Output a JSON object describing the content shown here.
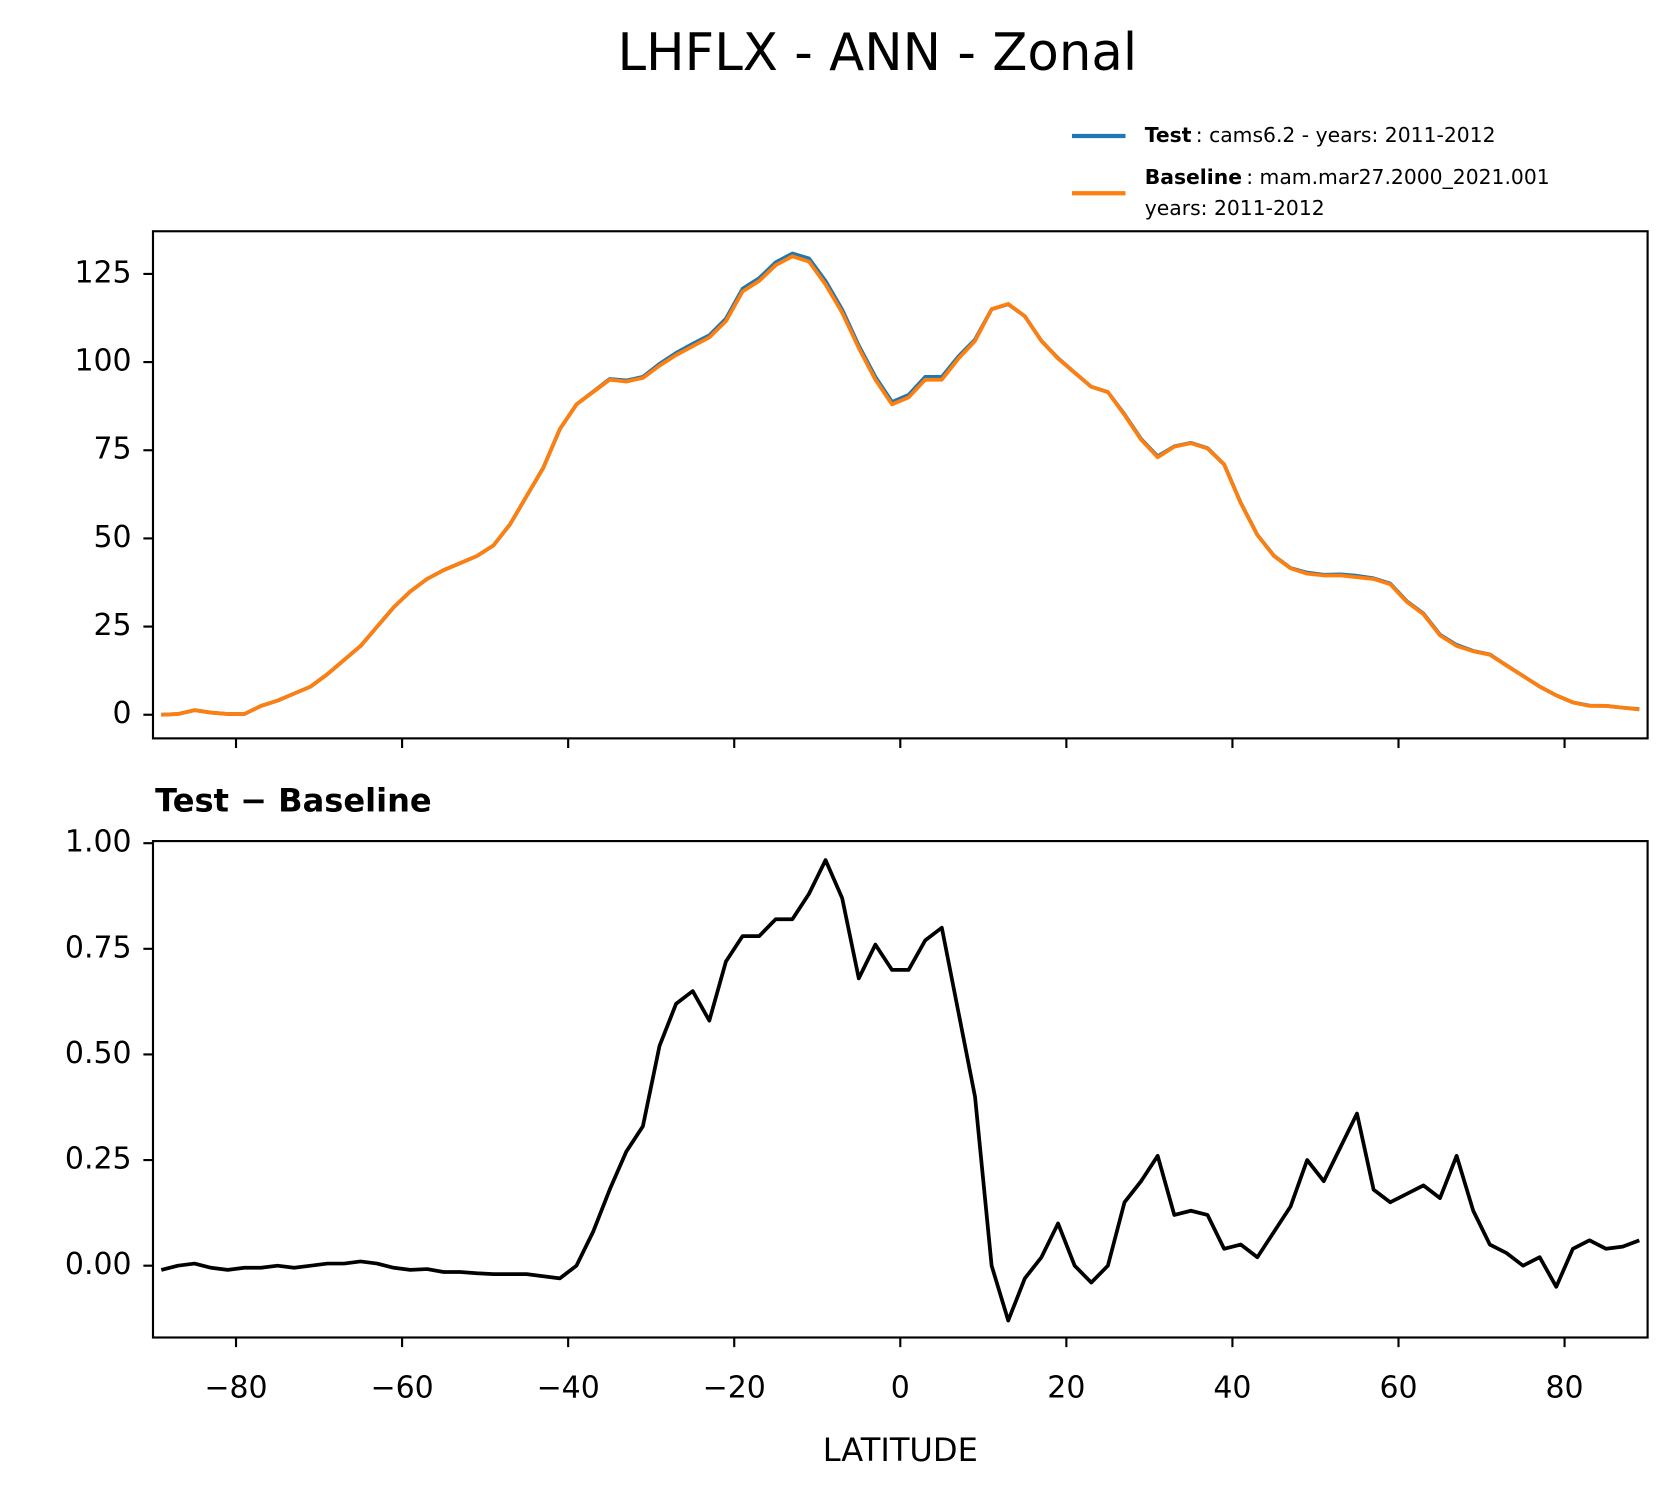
{
  "title": "LHFLX - ANN - Zonal",
  "chart_data": [
    {
      "type": "line",
      "x": [
        -89,
        -87,
        -85,
        -83,
        -81,
        -79,
        -77,
        -75,
        -73,
        -71,
        -69,
        -67,
        -65,
        -63,
        -61,
        -59,
        -57,
        -55,
        -53,
        -51,
        -49,
        -47,
        -45,
        -43,
        -41,
        -39,
        -37,
        -35,
        -33,
        -31,
        -29,
        -27,
        -25,
        -23,
        -21,
        -19,
        -17,
        -15,
        -13,
        -11,
        -9,
        -7,
        -5,
        -3,
        -1,
        1,
        3,
        5,
        7,
        9,
        11,
        13,
        15,
        17,
        19,
        21,
        23,
        25,
        27,
        29,
        31,
        33,
        35,
        37,
        39,
        41,
        43,
        45,
        47,
        49,
        51,
        53,
        55,
        57,
        59,
        61,
        63,
        65,
        67,
        69,
        71,
        73,
        75,
        77,
        79,
        81,
        83,
        85,
        87,
        89
      ],
      "series": [
        {
          "name": "Test",
          "description": [
            ": cams6.2 - years: 2011-2012"
          ],
          "color": "#1f77b4",
          "values": [
            0,
            0.2,
            1.3,
            0.6,
            0.2,
            0.2,
            2.5,
            4,
            6,
            8,
            11.5,
            15.5,
            19.5,
            25,
            30.5,
            35,
            38.5,
            41,
            43,
            45,
            48,
            54,
            62,
            70,
            81,
            88,
            91.6,
            95.2,
            94.8,
            95.8,
            99.5,
            102.6,
            105.2,
            107.6,
            112.3,
            120.8,
            123.8,
            128.3,
            130.8,
            129.4,
            123,
            114.9,
            104.7,
            95.8,
            88.7,
            90.7,
            95.8,
            95.8,
            101.6,
            106.4,
            115,
            116.4,
            113,
            106,
            101.1,
            97,
            93,
            91.5,
            85.2,
            78.2,
            73.3,
            76.1,
            77.1,
            75.6,
            71,
            60.1,
            51,
            45.1,
            41.6,
            40.3,
            39.7,
            39.8,
            39.4,
            38.7,
            37.2,
            32.2,
            28.7,
            22.7,
            19.8,
            18.1,
            17.1,
            14,
            11,
            8,
            5.5,
            3.5,
            2.6,
            2.5,
            2,
            1.6
          ]
        },
        {
          "name": "Baseline",
          "description": [
            ": mam.mar27.2000_2021.001",
            "years: 2011-2012"
          ],
          "color": "#ff7f0e",
          "values": [
            0,
            0.2,
            1.3,
            0.6,
            0.2,
            0.2,
            2.5,
            4,
            6,
            8,
            11.5,
            15.5,
            19.5,
            25,
            30.5,
            35,
            38.5,
            41,
            43,
            45,
            48,
            54,
            62,
            70,
            81,
            88,
            91.5,
            95,
            94.5,
            95.5,
            99,
            102,
            104.5,
            107,
            111.6,
            120,
            123,
            127.5,
            130,
            128.5,
            122,
            114,
            104,
            95,
            88,
            90,
            95,
            95,
            101,
            106,
            115,
            116.5,
            113,
            106,
            101,
            97,
            93,
            91.5,
            85,
            78,
            73,
            76,
            77,
            75.5,
            71,
            60,
            51,
            45,
            41.5,
            40,
            39.5,
            39.5,
            39,
            38.5,
            37,
            32,
            28.5,
            22.5,
            19.5,
            18,
            17,
            14,
            11,
            8,
            5.5,
            3.5,
            2.5,
            2.5,
            2,
            1.5
          ]
        }
      ],
      "xlim": [
        -90,
        90
      ],
      "ylim": [
        -6.7,
        137.1
      ],
      "xticks": [
        -80,
        -60,
        -40,
        -20,
        0,
        20,
        40,
        60,
        80
      ],
      "xtick_labels": false,
      "yticks": [
        0,
        25,
        50,
        75,
        100,
        125
      ]
    },
    {
      "type": "line",
      "title": "Test − Baseline",
      "xlabel": "LATITUDE",
      "x": [
        -89,
        -87,
        -85,
        -83,
        -81,
        -79,
        -77,
        -75,
        -73,
        -71,
        -69,
        -67,
        -65,
        -63,
        -61,
        -59,
        -57,
        -55,
        -53,
        -51,
        -49,
        -47,
        -45,
        -43,
        -41,
        -39,
        -37,
        -35,
        -33,
        -31,
        -29,
        -27,
        -25,
        -23,
        -21,
        -19,
        -17,
        -15,
        -13,
        -11,
        -9,
        -7,
        -5,
        -3,
        -1,
        1,
        3,
        5,
        7,
        9,
        11,
        13,
        15,
        17,
        19,
        21,
        23,
        25,
        27,
        29,
        31,
        33,
        35,
        37,
        39,
        41,
        43,
        45,
        47,
        49,
        51,
        53,
        55,
        57,
        59,
        61,
        63,
        65,
        67,
        69,
        71,
        73,
        75,
        77,
        79,
        81,
        83,
        85,
        87,
        89
      ],
      "series": [
        {
          "color": "#000000",
          "values": [
            -0.01,
            0,
            0.005,
            -0.005,
            -0.01,
            -0.005,
            -0.005,
            0,
            -0.005,
            0,
            0.005,
            0.005,
            0.01,
            0.005,
            -0.005,
            -0.01,
            -0.008,
            -0.015,
            -0.015,
            -0.018,
            -0.02,
            -0.02,
            -0.02,
            -0.025,
            -0.03,
            0,
            0.08,
            0.18,
            0.27,
            0.33,
            0.52,
            0.62,
            0.65,
            0.58,
            0.72,
            0.78,
            0.78,
            0.82,
            0.82,
            0.88,
            0.96,
            0.87,
            0.68,
            0.76,
            0.7,
            0.7,
            0.77,
            0.8,
            0.6,
            0.4,
            0,
            -0.13,
            -0.03,
            0.02,
            0.1,
            0,
            -0.04,
            0,
            0.15,
            0.2,
            0.26,
            0.12,
            0.13,
            0.12,
            0.04,
            0.05,
            0.02,
            0.08,
            0.14,
            0.25,
            0.2,
            0.28,
            0.36,
            0.18,
            0.15,
            0.17,
            0.19,
            0.16,
            0.26,
            0.13,
            0.05,
            0.03,
            0,
            0.02,
            -0.05,
            0.04,
            0.06,
            0.04,
            0.045,
            0.06
          ]
        }
      ],
      "xlim": [
        -90,
        90
      ],
      "ylim": [
        -0.17,
        1.005
      ],
      "xticks": [
        {
          "value": -80,
          "label": "−80"
        },
        {
          "value": -60,
          "label": "−60"
        },
        {
          "value": -40,
          "label": "−40"
        },
        {
          "value": -20,
          "label": "−20"
        },
        0,
        20,
        40,
        60,
        80
      ],
      "yticks": [
        {
          "value": 0,
          "label": "0.00"
        },
        {
          "value": 0.25,
          "label": "0.25"
        },
        {
          "value": 0.5,
          "label": "0.50"
        },
        {
          "value": 0.75,
          "label": "0.75"
        },
        {
          "value": 1,
          "label": "1.00"
        }
      ]
    }
  ]
}
